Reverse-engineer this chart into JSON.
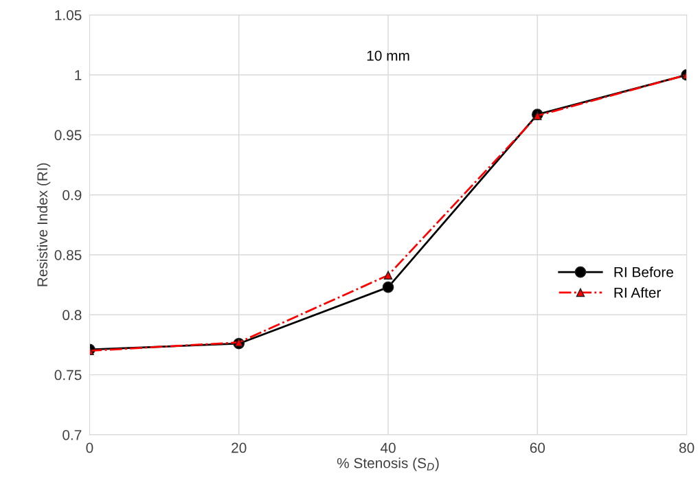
{
  "chart_data": {
    "type": "line",
    "xlabel": "% Stenosis (S$_{D}$)",
    "ylabel": "Resistive Index (RI)",
    "annotations": [
      "10 mm"
    ],
    "x": [
      0,
      20,
      40,
      60,
      80
    ],
    "series": [
      {
        "name": "RI Before",
        "color": "#000000",
        "values": [
          0.771,
          0.776,
          0.823,
          0.967,
          1.0
        ],
        "marker": "circle",
        "line_style": "solid"
      },
      {
        "name": "RI After",
        "color": "#ff0000",
        "values": [
          0.77,
          0.777,
          0.833,
          0.966,
          1.0
        ],
        "marker": "triangle",
        "line_style": "dashdot"
      }
    ],
    "xlim": [
      0,
      80
    ],
    "xticks": [
      0,
      20,
      40,
      60,
      80
    ],
    "ylim": [
      0.7,
      1.05
    ],
    "yticks": [
      0.7,
      0.75,
      0.8,
      0.85,
      0.9,
      0.95,
      1,
      1.05
    ],
    "grid": true,
    "legend": "right"
  }
}
